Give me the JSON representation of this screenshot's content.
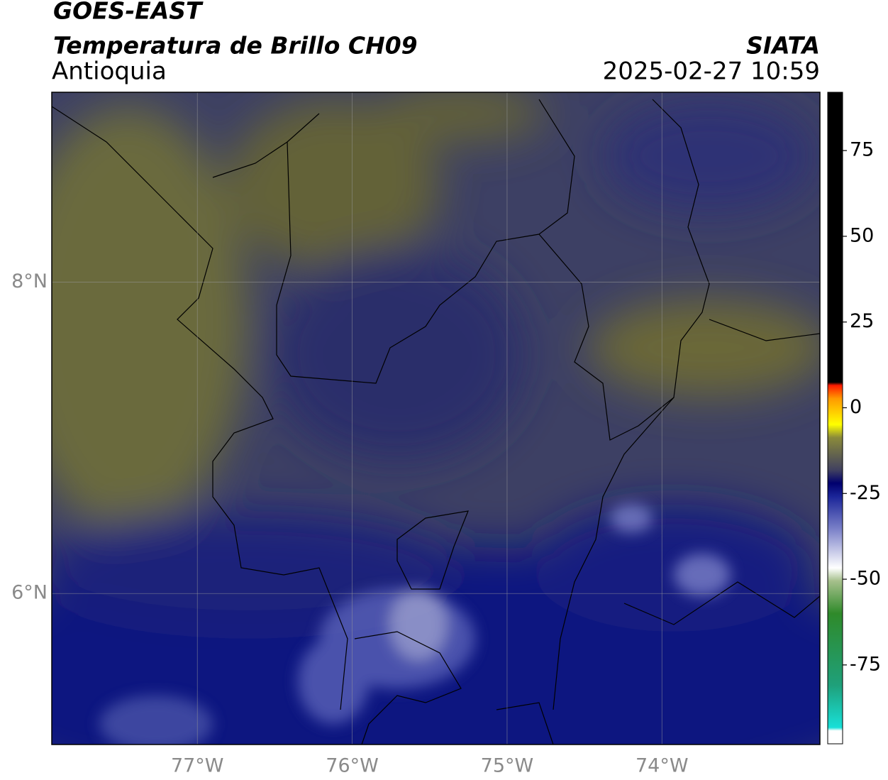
{
  "header": {
    "title": "GOES-EAST",
    "subtitle": "Temperatura de Brillo CH09",
    "region": "Antioquia",
    "source": "SIATA",
    "datetime": "2025-02-27 10:59"
  },
  "map": {
    "xlim": [
      -77.94,
      -72.98
    ],
    "ylim": [
      5.03,
      9.22
    ],
    "xticks": [
      {
        "value": -77,
        "label": "77°W"
      },
      {
        "value": -76,
        "label": "76°W"
      },
      {
        "value": -75,
        "label": "75°W"
      },
      {
        "value": -74,
        "label": "74°W"
      }
    ],
    "yticks": [
      {
        "value": 6,
        "label": "6°N"
      },
      {
        "value": 8,
        "label": "8°N"
      }
    ],
    "grid": true
  },
  "colorbar": {
    "clim": [
      -98,
      92
    ],
    "ticks": [
      75,
      50,
      25,
      0,
      -25,
      -50,
      -75
    ]
  }
}
